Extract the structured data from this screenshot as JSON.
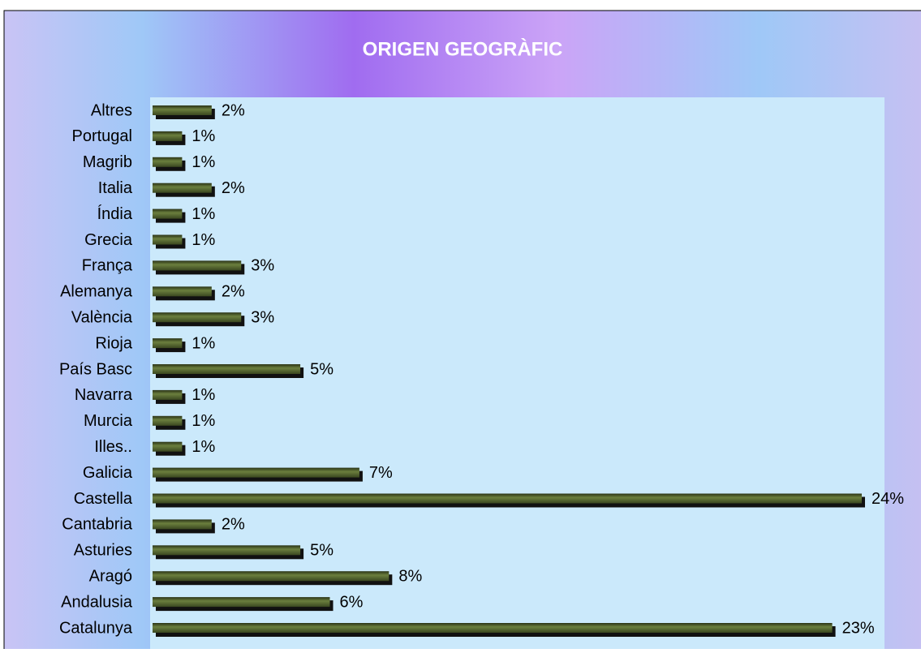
{
  "chart_data": {
    "type": "bar",
    "orientation": "horizontal",
    "title": "ORIGEN GEOGRÀFIC",
    "categories": [
      "Altres",
      "Portugal",
      "Magrib",
      "Italia",
      "Índia",
      "Grecia",
      "França",
      "Alemanya",
      "València",
      "Rioja",
      "País Basc",
      "Navarra",
      "Murcia",
      "Illes..",
      "Galicia",
      "Castella",
      "Cantabria",
      "Asturies",
      "Aragó",
      "Andalusia",
      "Catalunya"
    ],
    "values": [
      2,
      1,
      1,
      2,
      1,
      1,
      3,
      2,
      3,
      1,
      5,
      1,
      1,
      1,
      7,
      24,
      2,
      5,
      8,
      6,
      23
    ],
    "value_labels": [
      "2%",
      "1%",
      "1%",
      "2%",
      "1%",
      "1%",
      "3%",
      "2%",
      "3%",
      "1%",
      "5%",
      "1%",
      "1%",
      "1%",
      "7%",
      "24%",
      "2%",
      "5%",
      "8%",
      "6%",
      "23%"
    ],
    "color": "#4a5a2a"
  }
}
